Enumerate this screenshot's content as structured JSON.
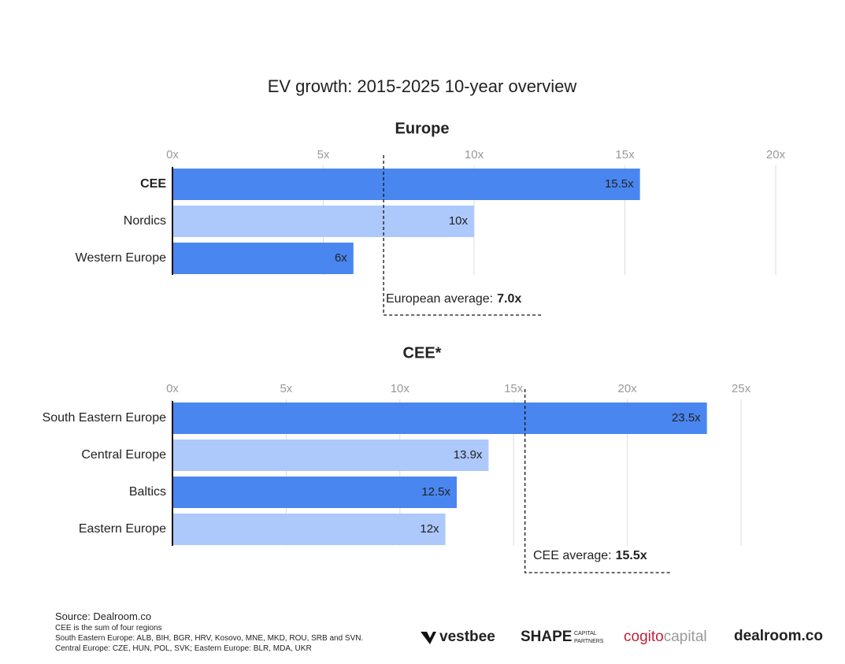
{
  "title": "EV growth: 2015-2025 10-year overview",
  "chart_data": [
    {
      "type": "bar",
      "orientation": "horizontal",
      "title": "Europe",
      "categories": [
        "CEE",
        "Nordics",
        "Western Europe"
      ],
      "values": [
        15.5,
        10,
        6
      ],
      "value_labels": [
        "15.5x",
        "10x",
        "6x"
      ],
      "colors": [
        "#4a86f0",
        "#adc8fb",
        "#4a86f0"
      ],
      "bold_category_index": 0,
      "xlim": [
        0,
        20
      ],
      "xticks": [
        {
          "value": 0,
          "label": "0x"
        },
        {
          "value": 5,
          "label": "5x"
        },
        {
          "value": 10,
          "label": "10x"
        },
        {
          "value": 15,
          "label": "15x"
        },
        {
          "value": 20,
          "label": "20x"
        }
      ],
      "grid": true,
      "average": {
        "label": "European average:",
        "value": 7,
        "value_label": "7.0x"
      }
    },
    {
      "type": "bar",
      "orientation": "horizontal",
      "title": "CEE*",
      "categories": [
        "South Eastern Europe",
        "Central Europe",
        "Baltics",
        "Eastern Europe"
      ],
      "values": [
        23.5,
        13.9,
        12.5,
        12
      ],
      "value_labels": [
        "23.5x",
        "13.9x",
        "12.5x",
        "12x"
      ],
      "colors": [
        "#4a86f0",
        "#adc8fb",
        "#4a86f0",
        "#adc8fb"
      ],
      "xlim": [
        0,
        25
      ],
      "xticks": [
        {
          "value": 0,
          "label": "0x"
        },
        {
          "value": 5,
          "label": "5x"
        },
        {
          "value": 10,
          "label": "10x"
        },
        {
          "value": 15,
          "label": "15x"
        },
        {
          "value": 20,
          "label": "20x"
        },
        {
          "value": 25,
          "label": "25x"
        }
      ],
      "grid": true,
      "average": {
        "label": "CEE average:",
        "value": 15.5,
        "value_label": "15.5x"
      }
    }
  ],
  "footnotes": [
    "Source:  Dealroom.co",
    "CEE is the sum of four regions",
    "South Eastern Europe:  ALB, BIH, BGR, HRV, Kosovo, MNE, MKD, ROU, SRB and SVN.",
    "Central Europe: CZE, HUN, POL, SVK; Eastern Europe: BLR, MDA, UKR"
  ],
  "logos": {
    "vestbee": "vestbee",
    "shape": "SHAPE",
    "shape_sub1": "CAPITAL",
    "shape_sub2": "PARTNERS",
    "cogito1": "cogito",
    "cogito2": "capital",
    "dealroom": "dealroom.co"
  }
}
